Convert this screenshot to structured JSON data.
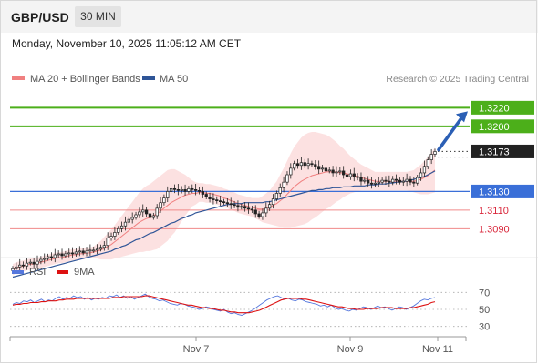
{
  "header": {
    "symbol": "GBP/USD",
    "timeframe": "30 MIN"
  },
  "datetime": "Monday, November 10, 2025 11:05:12 AM CET",
  "legend": {
    "bollinger_label": "MA 20 + Bollinger Bands",
    "ma50_label": "MA 50",
    "credit": "Research © 2025 Trading Central",
    "bollinger_color": "#f08080",
    "ma50_color": "#2f5597"
  },
  "rsi_legend": {
    "rsi_label": "RSI",
    "ma_label": "9MA",
    "rsi_color": "#5577dd",
    "ma_color": "#dd1111"
  },
  "chart_data": {
    "type": "candlestick",
    "y_range": [
      1.306,
      1.3236
    ],
    "x_ticks": [
      "Nov 7",
      "Nov 9",
      "Nov 11"
    ],
    "current_price": "1.3173",
    "levels": [
      {
        "label": "1.3220",
        "value": 1.322,
        "color": "#4caf1a",
        "kind": "resistance",
        "style": "badge"
      },
      {
        "label": "1.3200",
        "value": 1.32,
        "color": "#4caf1a",
        "kind": "resistance",
        "style": "badge"
      },
      {
        "label": "1.3130",
        "value": 1.313,
        "color": "#3a6fd8",
        "kind": "pivot",
        "style": "badge"
      },
      {
        "label": "1.3110",
        "value": 1.311,
        "color": "#d9263a",
        "kind": "support",
        "style": "text"
      },
      {
        "label": "1.3090",
        "value": 1.309,
        "color": "#d9263a",
        "kind": "support",
        "style": "text"
      }
    ],
    "closes": [
      1.3047,
      1.3049,
      1.3051,
      1.305,
      1.3053,
      1.3054,
      1.3052,
      1.3055,
      1.3057,
      1.3058,
      1.306,
      1.3059,
      1.3062,
      1.3063,
      1.3061,
      1.3063,
      1.3064,
      1.3063,
      1.3065,
      1.3066,
      1.3064,
      1.3066,
      1.3067,
      1.3067,
      1.3068,
      1.307,
      1.3072,
      1.308,
      1.3082,
      1.3086,
      1.309,
      1.3093,
      1.3097,
      1.31,
      1.3102,
      1.3105,
      1.3108,
      1.311,
      1.3106,
      1.3102,
      1.3104,
      1.3112,
      1.3118,
      1.3123,
      1.313,
      1.3133,
      1.3132,
      1.3131,
      1.3132,
      1.313,
      1.3133,
      1.3132,
      1.3131,
      1.313,
      1.3127,
      1.3124,
      1.3122,
      1.3121,
      1.312,
      1.3119,
      1.3118,
      1.3117,
      1.3116,
      1.3115,
      1.3113,
      1.3114,
      1.3112,
      1.3111,
      1.311,
      1.3106,
      1.3103,
      1.3107,
      1.3112,
      1.3116,
      1.3122,
      1.3128,
      1.3134,
      1.314,
      1.3148,
      1.3155,
      1.316,
      1.3158,
      1.3161,
      1.3158,
      1.316,
      1.3159,
      1.3157,
      1.3154,
      1.3155,
      1.3152,
      1.3153,
      1.315,
      1.3151,
      1.3152,
      1.3148,
      1.3146,
      1.3149,
      1.3146,
      1.3145,
      1.3141,
      1.3142,
      1.3139,
      1.3138,
      1.3139,
      1.314,
      1.3142,
      1.3141,
      1.314,
      1.3143,
      1.3142,
      1.314,
      1.3141,
      1.3143,
      1.314,
      1.3139,
      1.3145,
      1.315,
      1.3157,
      1.3164,
      1.317,
      1.3173
    ],
    "ma20": [
      1.3046,
      1.3048,
      1.3049,
      1.305,
      1.3051,
      1.3052,
      1.3052,
      1.3053,
      1.3054,
      1.3055,
      1.3056,
      1.3057,
      1.3058,
      1.3059,
      1.3059,
      1.306,
      1.3061,
      1.3062,
      1.3062,
      1.3063,
      1.3063,
      1.3064,
      1.3064,
      1.3065,
      1.3066,
      1.3067,
      1.3069,
      1.3071,
      1.3073,
      1.3076,
      1.3079,
      1.3082,
      1.3085,
      1.3088,
      1.3091,
      1.3094,
      1.3097,
      1.3099,
      1.3101,
      1.3102,
      1.3104,
      1.3106,
      1.3109,
      1.3112,
      1.3115,
      1.3118,
      1.312,
      1.3122,
      1.3124,
      1.3126,
      1.3127,
      1.3128,
      1.3128,
      1.3129,
      1.3129,
      1.3128,
      1.3128,
      1.3127,
      1.3126,
      1.3125,
      1.3123,
      1.3122,
      1.312,
      1.3119,
      1.3117,
      1.3116,
      1.3115,
      1.3114,
      1.3113,
      1.3112,
      1.3111,
      1.3111,
      1.3112,
      1.3113,
      1.3115,
      1.3117,
      1.312,
      1.3123,
      1.3127,
      1.3131,
      1.3135,
      1.3138,
      1.3141,
      1.3143,
      1.3145,
      1.3147,
      1.3148,
      1.3149,
      1.315,
      1.3151,
      1.3151,
      1.3151,
      1.3151,
      1.315,
      1.315,
      1.3149,
      1.3148,
      1.3147,
      1.3146,
      1.3145,
      1.3144,
      1.3143,
      1.3142,
      1.3141,
      1.3141,
      1.3141,
      1.3141,
      1.3141,
      1.3141,
      1.3141,
      1.3141,
      1.3141,
      1.3141,
      1.3141,
      1.3141,
      1.3142,
      1.3143,
      1.3145,
      1.3147,
      1.315,
      1.3153
    ],
    "ma50": [
      1.3038,
      1.3039,
      1.304,
      1.3041,
      1.3042,
      1.3043,
      1.3044,
      1.3045,
      1.3046,
      1.3047,
      1.3048,
      1.3049,
      1.305,
      1.3051,
      1.3052,
      1.3053,
      1.3054,
      1.3055,
      1.3056,
      1.3057,
      1.3058,
      1.3059,
      1.306,
      1.3061,
      1.3062,
      1.3063,
      1.3064,
      1.3065,
      1.3066,
      1.3068,
      1.3069,
      1.3071,
      1.3072,
      1.3074,
      1.3076,
      1.3078,
      1.3079,
      1.3081,
      1.3083,
      1.3085,
      1.3086,
      1.3088,
      1.309,
      1.3092,
      1.3094,
      1.3096,
      1.3097,
      1.3099,
      1.3101,
      1.3102,
      1.3104,
      1.3105,
      1.3107,
      1.3108,
      1.3109,
      1.311,
      1.3111,
      1.3112,
      1.3113,
      1.3114,
      1.3115,
      1.3116,
      1.3116,
      1.3117,
      1.3117,
      1.3117,
      1.3118,
      1.3118,
      1.3118,
      1.3118,
      1.3118,
      1.3118,
      1.3119,
      1.3119,
      1.312,
      1.3121,
      1.3122,
      1.3123,
      1.3124,
      1.3125,
      1.3126,
      1.3127,
      1.3128,
      1.3129,
      1.313,
      1.3131,
      1.3131,
      1.3132,
      1.3132,
      1.3133,
      1.3133,
      1.3134,
      1.3134,
      1.3134,
      1.3135,
      1.3135,
      1.3135,
      1.3136,
      1.3136,
      1.3136,
      1.3136,
      1.3137,
      1.3137,
      1.3137,
      1.3138,
      1.3138,
      1.3138,
      1.3139,
      1.3139,
      1.314,
      1.314,
      1.3141,
      1.3141,
      1.3142,
      1.3143,
      1.3144,
      1.3145,
      1.3146,
      1.3148,
      1.315,
      1.3152
    ],
    "bb_width": [
      0.0006,
      0.0006,
      0.0006,
      0.0006,
      0.0006,
      0.0006,
      0.0006,
      0.0006,
      0.0006,
      0.0006,
      0.0006,
      0.0006,
      0.0006,
      0.0006,
      0.0006,
      0.0006,
      0.0006,
      0.0006,
      0.0006,
      0.0006,
      0.0006,
      0.0006,
      0.0006,
      0.0006,
      0.0008,
      0.001,
      0.0012,
      0.0014,
      0.0016,
      0.0018,
      0.002,
      0.0022,
      0.0024,
      0.0026,
      0.0028,
      0.003,
      0.0032,
      0.0034,
      0.0035,
      0.0036,
      0.0037,
      0.0038,
      0.0038,
      0.0038,
      0.0038,
      0.0036,
      0.0034,
      0.003,
      0.0026,
      0.0022,
      0.0018,
      0.0014,
      0.0012,
      0.001,
      0.001,
      0.001,
      0.001,
      0.001,
      0.001,
      0.001,
      0.001,
      0.001,
      0.001,
      0.001,
      0.001,
      0.001,
      0.001,
      0.001,
      0.001,
      0.0011,
      0.0012,
      0.0014,
      0.0016,
      0.0018,
      0.0021,
      0.0024,
      0.0028,
      0.0032,
      0.0036,
      0.004,
      0.0043,
      0.0045,
      0.0047,
      0.0048,
      0.0048,
      0.0047,
      0.0046,
      0.0044,
      0.0042,
      0.004,
      0.0038,
      0.0035,
      0.0032,
      0.0029,
      0.0026,
      0.0023,
      0.002,
      0.0018,
      0.0016,
      0.0014,
      0.0013,
      0.0012,
      0.0011,
      0.001,
      0.001,
      0.001,
      0.001,
      0.001,
      0.001,
      0.001,
      0.001,
      0.001,
      0.001,
      0.0011,
      0.0012,
      0.0014,
      0.0016,
      0.0018,
      0.002,
      0.0022,
      0.0024
    ],
    "rsi": {
      "y_range": [
        20,
        80
      ],
      "ticks": [
        70,
        50,
        30
      ],
      "rsi": [
        56,
        58,
        57,
        60,
        59,
        61,
        58,
        60,
        62,
        59,
        61,
        60,
        63,
        65,
        62,
        64,
        63,
        66,
        64,
        65,
        62,
        64,
        61,
        63,
        62,
        64,
        63,
        66,
        65,
        67,
        64,
        66,
        63,
        65,
        62,
        64,
        66,
        68,
        65,
        63,
        62,
        60,
        61,
        59,
        57,
        56,
        55,
        57,
        56,
        54,
        53,
        52,
        50,
        51,
        53,
        52,
        50,
        49,
        48,
        50,
        47,
        45,
        46,
        44,
        43,
        45,
        47,
        49,
        52,
        55,
        58,
        61,
        63,
        65,
        66,
        64,
        62,
        63,
        61,
        60,
        62,
        61,
        59,
        58,
        57,
        56,
        54,
        55,
        53,
        55,
        52,
        50,
        51,
        49,
        48,
        50,
        49,
        51,
        53,
        52,
        50,
        52,
        54,
        52,
        53,
        51,
        49,
        51,
        53,
        52,
        50,
        52,
        54,
        57,
        60,
        62,
        61,
        63,
        64
      ],
      "ma9": [
        55,
        56,
        56,
        57,
        57,
        58,
        58,
        58,
        59,
        59,
        60,
        60,
        60,
        61,
        61,
        62,
        62,
        62,
        63,
        63,
        63,
        63,
        63,
        63,
        63,
        63,
        63,
        63,
        64,
        64,
        64,
        65,
        65,
        65,
        65,
        65,
        65,
        66,
        66,
        65,
        64,
        63,
        62,
        61,
        60,
        59,
        58,
        57,
        56,
        55,
        55,
        54,
        53,
        52,
        52,
        51,
        51,
        50,
        49,
        49,
        48,
        47,
        47,
        46,
        46,
        46,
        46,
        47,
        48,
        49,
        51,
        53,
        55,
        57,
        59,
        61,
        62,
        63,
        63,
        63,
        63,
        62,
        62,
        61,
        60,
        59,
        58,
        57,
        56,
        55,
        54,
        53,
        53,
        52,
        51,
        51,
        50,
        50,
        50,
        51,
        51,
        51,
        51,
        52,
        52,
        52,
        52,
        51,
        51,
        51,
        51,
        52,
        52,
        53,
        54,
        55,
        56,
        58,
        59
      ]
    }
  }
}
